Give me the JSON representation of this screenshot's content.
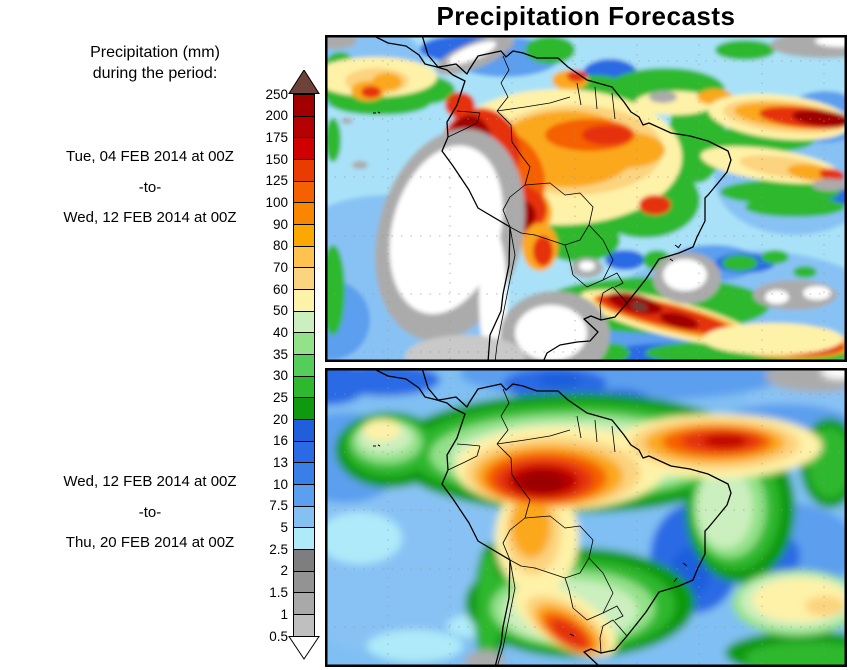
{
  "title": "Precipitation Forecasts",
  "legend": {
    "title_line1": "Precipitation (mm)",
    "title_line2": "during the period:",
    "units": "mm",
    "above_max_color": "#6E4238",
    "below_min_color": "#FFFFFF",
    "stops": [
      {
        "value": "250",
        "segment_color": "#A00000"
      },
      {
        "value": "200",
        "segment_color": "#B40000"
      },
      {
        "value": "175",
        "segment_color": "#CE0000"
      },
      {
        "value": "150",
        "segment_color": "#E83C00"
      },
      {
        "value": "125",
        "segment_color": "#F56000"
      },
      {
        "value": "100",
        "segment_color": "#FA8500"
      },
      {
        "value": "90",
        "segment_color": "#FCA800"
      },
      {
        "value": "80",
        "segment_color": "#FDC34E"
      },
      {
        "value": "70",
        "segment_color": "#FCD37E"
      },
      {
        "value": "60",
        "segment_color": "#FEF2A8"
      },
      {
        "value": "50",
        "segment_color": "#CBEFBE"
      },
      {
        "value": "40",
        "segment_color": "#93E189"
      },
      {
        "value": "35",
        "segment_color": "#54CE59"
      },
      {
        "value": "30",
        "segment_color": "#2EB82E"
      },
      {
        "value": "25",
        "segment_color": "#0E990E"
      },
      {
        "value": "20",
        "segment_color": "#1F5FDC"
      },
      {
        "value": "16",
        "segment_color": "#2A6AE4"
      },
      {
        "value": "13",
        "segment_color": "#3A7FE8"
      },
      {
        "value": "10",
        "segment_color": "#5C9FEF"
      },
      {
        "value": "7.5",
        "segment_color": "#84C0F2"
      },
      {
        "value": "5",
        "segment_color": "#AEEAF9"
      },
      {
        "value": "2.5",
        "segment_color": "#7E7E7E"
      },
      {
        "value": "2",
        "segment_color": "#939393"
      },
      {
        "value": "1.5",
        "segment_color": "#A9A9A9"
      },
      {
        "value": "1",
        "segment_color": "#BFBFBF"
      },
      {
        "value": "0.5",
        "segment_color": null
      }
    ]
  },
  "panels": [
    {
      "period_from": "Tue, 04 FEB 2014 at 00Z",
      "separator": "-to-",
      "period_to": "Wed, 12 FEB 2014 at 00Z"
    },
    {
      "period_from": "Wed, 12 FEB 2014 at 00Z",
      "separator": "-to-",
      "period_to": "Thu, 20 FEB 2014 at 00Z"
    }
  ],
  "chart_data": [
    {
      "type": "heatmap",
      "title": "Precipitation (mm), Tue 04 FEB 2014 00Z to Wed 12 FEB 2014 00Z",
      "region": "South America",
      "units": "mm",
      "levels": [
        0.5,
        1,
        1.5,
        2,
        2.5,
        5,
        7.5,
        10,
        13,
        16,
        20,
        25,
        30,
        35,
        40,
        50,
        60,
        70,
        80,
        90,
        100,
        125,
        150,
        175,
        200,
        250
      ],
      "legend_position": "left",
      "notable_features": [
        "heavy rain >200mm over western Amazon and Andes of Peru/Bolivia",
        "red band 100-200mm across southern Brazil and Uruguay",
        "dry (<0.5mm) zone off Chile-Peru Pacific coast and central Argentina",
        "ITCZ rain band across the north"
      ]
    },
    {
      "type": "heatmap",
      "title": "Precipitation (mm), Wed 12 FEB 2014 00Z to Thu 20 FEB 2014 00Z",
      "region": "South America",
      "units": "mm",
      "levels": [
        0.5,
        1,
        1.5,
        2,
        2.5,
        5,
        7.5,
        10,
        13,
        16,
        20,
        25,
        30,
        35,
        40,
        50,
        60,
        70,
        80,
        90,
        100,
        125,
        150,
        175,
        200,
        250
      ],
      "legend_position": "left",
      "notable_features": [
        "smooth field; >200mm core over western Amazon",
        "100-150mm blob near mouth of Amazon extending into Atlantic",
        "orange core over NE Argentina/Uruguay",
        "drier blue hole over Paraguay and east-central Brazil"
      ]
    }
  ]
}
